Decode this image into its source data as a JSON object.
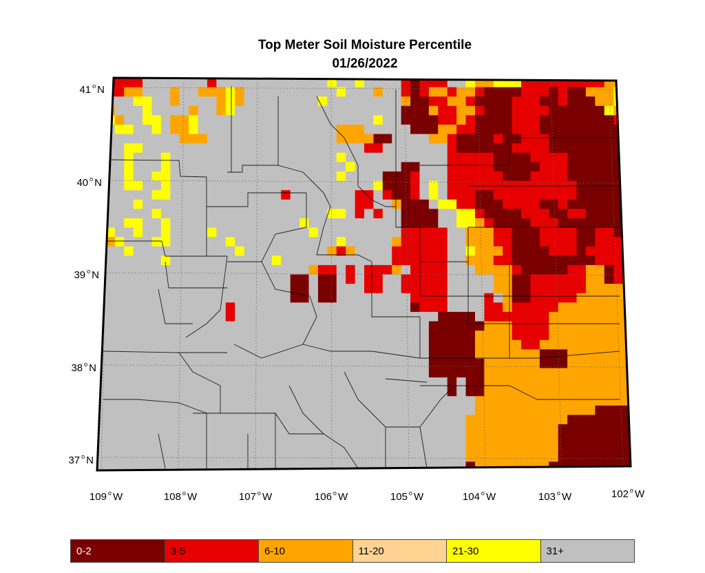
{
  "title_line1": "Top Meter Soil Moisture Percentile",
  "title_line2": "01/26/2022",
  "lat_labels": [
    {
      "deg": "41",
      "hemi": "N"
    },
    {
      "deg": "40",
      "hemi": "N"
    },
    {
      "deg": "39",
      "hemi": "N"
    },
    {
      "deg": "38",
      "hemi": "N"
    },
    {
      "deg": "37",
      "hemi": "N"
    }
  ],
  "lon_labels": [
    {
      "deg": "109",
      "hemi": "W"
    },
    {
      "deg": "108",
      "hemi": "W"
    },
    {
      "deg": "107",
      "hemi": "W"
    },
    {
      "deg": "106",
      "hemi": "W"
    },
    {
      "deg": "105",
      "hemi": "W"
    },
    {
      "deg": "104",
      "hemi": "W"
    },
    {
      "deg": "103",
      "hemi": "W"
    },
    {
      "deg": "102",
      "hemi": "W"
    }
  ],
  "legend": [
    {
      "label": "0-2",
      "color": "#7a0000",
      "text_color": "#ffffff"
    },
    {
      "label": "3-5",
      "color": "#e60000",
      "text_color": "#000000"
    },
    {
      "label": "6-10",
      "color": "#ffa500",
      "text_color": "#000000"
    },
    {
      "label": "11-20",
      "color": "#ffd391",
      "text_color": "#000000"
    },
    {
      "label": "21-30",
      "color": "#ffff00",
      "text_color": "#000000"
    },
    {
      "label": "31+",
      "color": "#c0c0c0",
      "text_color": "#000000"
    }
  ],
  "map": {
    "rows": [
      "NNZZZGGGGGGGZGGGGGGGGGGGGYGGYGGGGZNZZZGGYAAYYYZZZZZZZZZAAA",
      "ZZZAAGGGAGGAAAYAGGGGGGGGGGYGGGAGGZNZAAZAAZNNNNZZZNZNNAAAYA",
      "ZGGGYYGGAGGGGAYAGGGGGGGGYGGGGGGGGANNZZAAZNNNNZZZNNZNNNAAYY",
      "YAGGGYGGGGAGGAYGGGGGGGGGGGGGGGGGGNNNAZZAAZNNNZZZZNNNNNNYAY",
      "GYAGGYYGAAYGGGGGGGGGGGGGGGGGGGYGGNNNNZZAZNNNNZZZNNNNNNNNZZ",
      "GGYYGGYGAAYGGGGGGGGGGGGGGGAAAGGGGGNNNAAZZNNNNZZZNNNNNNNNNZ",
      "GGGGGGGGGAAAGGGGGGGGGGGGGGAAAANNGGGGAAZNNNNZNNZZZNNNNNNNNZ",
      "GGGYYGGGGGGGGGGGGGGGGGGGGGGGGZZGGGGGGGZNNNNNNZZZZNNNNNNNNN",
      "GGGYGGGYGGGGGGGGGGGGGGGGGGYGGGGGGGGGGGZZZZZNNNNZZZZNNNNNNN",
      "GGGYGGGYGGGGGGGGGGGGGGGGGGGYGGGGGNNGGGZZZZZNNNNNZZZNNNNNNN",
      "GGGYGGYYGGGGGGGGGGGGGGGGGGYGGGGNNNZGGGZZZZZZNNNZZZZNNNNNNN",
      "GGGYYGGYGGGGGGGGGGGGGGGGGGGGGGYNNNZGYGZZZZZZZZZZZZZZNNNNNZ",
      "GGGGGGYYGGGGGGGGGGGGZGGGGGGGZZGZNNZGYGZZZNNZZZZZZZZZNNNNNZ",
      "GGGGYGGGGGGGGGGGGGGGGGGGGGGGZZGGANNNGYYZZNNNZZZZNNZNNNNNNZ",
      "YGGGGGYGGGGGGGGGGGGGGGGGGYYGZGZGGNNNNGGYYZNNNNZZZNNZZNNNNZ",
      "YGGYYGGYGGGGGGGGGGGGGGYGGGGGGGGGGNNNNGGYYAZNNNNZZZNNNNNNNZ",
      "AYGGYGGYGGGGYGGGGGGGGGGYGGGGGGGGGZZZZZGGAAAZZNNNZZZZNNZZNZ",
      "GAYGGGYYGGGGGGYGGGGGGGGGGGYGGGGGAZZZZZGGAAAZZNNNZZZZNNZZZZ",
      "YGGYGGGGGGGGGGGYGGGGGGGGGAZAGGGGZZZZZZGGYAAAZNNNNZZZNZZZZZ",
      "GGGGGGGYGGGGGGGGGGGYGGGGGGGGGGGGZZZZZZGGAAAZZNNNNNNNNNZZZZ",
      "GGGGGGGGGGGGGGGGGGGGGGGAZZGZGZZZAGZZZZGGGAAAAZNNNNNZZAANZZ",
      "GGGGGGGGGGGGGGGGGGGGGNNGNNGZGZZGGZZZZZGGGGGAANNZZZZZZAANZZ",
      "GGGGGGGGGGGGGGGGGGGGGNNGNNGGGZZGGZZZZZGGGGGAANNZZZZZZAAAAA",
      "GGGGGGGGGGGGGGGGGGGGGNNGNNGGGGGGGGZZZZGGGGZGANNZZZZZAAAAAA",
      "GGGGGGGGGGGGGGZGGGGGGGGGGGGGGGGGGGNZZZGGGGZZAZZZZZAAAAAAAA",
      "GGGGGGGGGGGGGGZGGGGGGGGGGGGGGGGGGGGGGNNNNGZZZZZZZAAAAAAAAA",
      "GGGGGGGGGGGGGGGGGGGGGGGGGGGGGGGGGGGGNNNNNNAAAZZZZAAAAAAAAA",
      "GGGGGGGGGGGGGGGGGGGGGGGGGGGGGGGGGGGGNNNNNAAAAZZZZAAAAAAAAA",
      "GGGGGGGGGGGGGGGGGGGGGGGGGGGGGGGGGGGGNNNNNAAAAAZZAAAAAAAAAA",
      "GGGGGGGGGGGGGGGGGGGGGGGGGGGGGGGGGGGGNNNNNAAAAAAANNNAAAAAAA",
      "GGGGGGGGGGGGGGGGGGGGGGGGGGGGGGGGGGGGNNNNNNAAAAAANNNAAAAAAA",
      "GGGGGGGGGGGGGGGGGGGGGGGGGGGGGGGGGGGGNNNNNNAAAAAAAAAAAAAAAA",
      "GGGGGGGGGGGGGGGGGGGGGGGGGGGGGGGGGGGGGGNGNNAAAAAAAAAAAAAAAA",
      "GGGGGGGGGGGGGGGGGGGGGGGGGGGGGGGGGGGGGGNGNNAAAAAAAAAAAAAAAA",
      "GGGGGGGGGGGGGGGGGGGGGGGGGGGGGGGGGGGGGGGGGAAAAAAAAAAAAAAAAA",
      "GGGGGGGGGGGGGGGGGGGGGGGGGGGGGGGGGGGGGGGGGAAAAAAAAAAAAANNNN",
      "GGGGGGGGGGGGGGGGGGGGGGGGGGGGGGGGGGGGGGGGAAAAAAAAAAANNNNNNN",
      "GGGGGGGGGGGGGGGGGGGGGGGGGGGGGGGGGGGGGGGGAAAAAAAAAANNNNNNNN",
      "GGGGGGGGGGGGGGGGGGGGGGGGGGGGGGGGGGGGGGGGAAAAAAAAAANNNNNNNN",
      "GGGGGGGGGGGGGGGGGGGGGGGGGGGGGGGGGGGGGGGGAAAAAAAAAANNNNNNNN",
      "GGGGGGGGGGGGGGGGGGGGGGGGGGGGGGGGGGGGGGGGAAAAAAAAAANNNNNNNN",
      "GGGGGGGGGGGGGGGGGGGGGGGGGGGGGGGGGGGGGGGGNAAAAAAAANNNNNNNNN"
    ]
  }
}
